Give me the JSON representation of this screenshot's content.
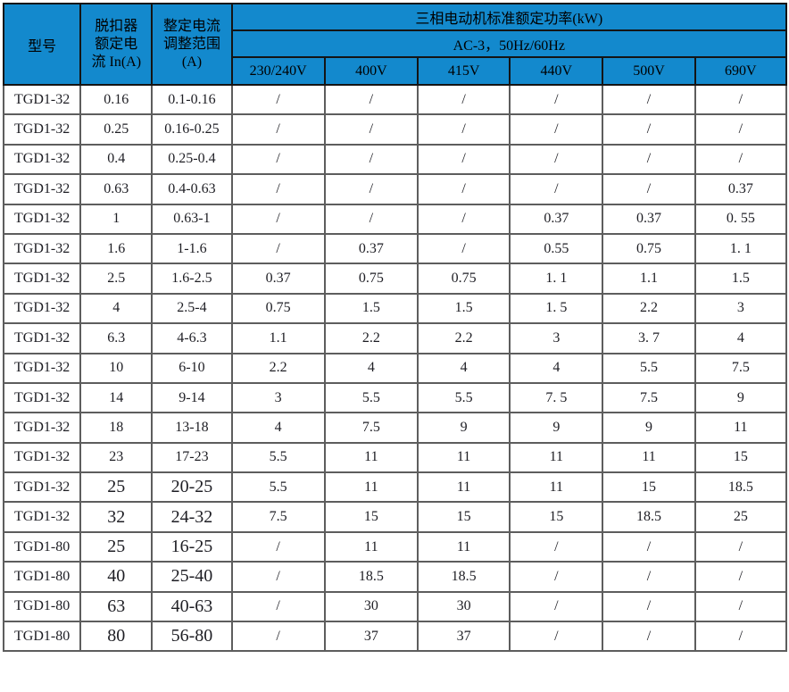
{
  "colors": {
    "header_bg": "#1389cd",
    "header_text": "#000000",
    "header_grid": "#141414",
    "grid": "#5d5d5d",
    "outer": "#333333",
    "body_text": "#1e1e24"
  },
  "table": {
    "headers": {
      "model": "型号",
      "trip_current": "脱扣器\n额定电\n流 In(A)",
      "adjust_range": "整定电流\n调整范围\n(A)",
      "power_title": "三相电动机标准额定功率(kW)",
      "ac_condition": "AC-3，50Hz/60Hz",
      "voltages": [
        "230/240V",
        "400V",
        "415V",
        "440V",
        "500V",
        "690V"
      ]
    },
    "rows": [
      {
        "model": "TGD1-32",
        "in": "0.16",
        "range": "0.1-0.16",
        "values": [
          "/",
          "/",
          "/",
          "/",
          "/",
          "/"
        ],
        "large": false
      },
      {
        "model": "TGD1-32",
        "in": "0.25",
        "range": "0.16-0.25",
        "values": [
          "/",
          "/",
          "/",
          "/",
          "/",
          "/"
        ],
        "large": false
      },
      {
        "model": "TGD1-32",
        "in": "0.4",
        "range": "0.25-0.4",
        "values": [
          "/",
          "/",
          "/",
          "/",
          "/",
          "/"
        ],
        "large": false
      },
      {
        "model": "TGD1-32",
        "in": "0.63",
        "range": "0.4-0.63",
        "values": [
          "/",
          "/",
          "/",
          "/",
          "/",
          "0.37"
        ],
        "large": false
      },
      {
        "model": "TGD1-32",
        "in": "1",
        "range": "0.63-1",
        "values": [
          "/",
          "/",
          "/",
          "0.37",
          "0.37",
          "0. 55"
        ],
        "large": false
      },
      {
        "model": "TGD1-32",
        "in": "1.6",
        "range": "1-1.6",
        "values": [
          "/",
          "0.37",
          "/",
          "0.55",
          "0.75",
          "1. 1"
        ],
        "large": false
      },
      {
        "model": "TGD1-32",
        "in": "2.5",
        "range": "1.6-2.5",
        "values": [
          "0.37",
          "0.75",
          "0.75",
          "1. 1",
          "1.1",
          "1.5"
        ],
        "large": false
      },
      {
        "model": "TGD1-32",
        "in": "4",
        "range": "2.5-4",
        "values": [
          "0.75",
          "1.5",
          "1.5",
          "1. 5",
          "2.2",
          "3"
        ],
        "large": false
      },
      {
        "model": "TGD1-32",
        "in": "6.3",
        "range": "4-6.3",
        "values": [
          "1.1",
          "2.2",
          "2.2",
          "3",
          "3. 7",
          "4"
        ],
        "large": false
      },
      {
        "model": "TGD1-32",
        "in": "10",
        "range": "6-10",
        "values": [
          "2.2",
          "4",
          "4",
          "4",
          "5.5",
          "7.5"
        ],
        "large": false
      },
      {
        "model": "TGD1-32",
        "in": "14",
        "range": "9-14",
        "values": [
          "3",
          "5.5",
          "5.5",
          "7. 5",
          "7.5",
          "9"
        ],
        "large": false
      },
      {
        "model": "TGD1-32",
        "in": "18",
        "range": "13-18",
        "values": [
          "4",
          "7.5",
          "9",
          "9",
          "9",
          "11"
        ],
        "large": false
      },
      {
        "model": "TGD1-32",
        "in": "23",
        "range": "17-23",
        "values": [
          "5.5",
          "11",
          "11",
          "11",
          "11",
          "15"
        ],
        "large": false
      },
      {
        "model": "TGD1-32",
        "in": "25",
        "range": "20-25",
        "values": [
          "5.5",
          "11",
          "11",
          "11",
          "15",
          "18.5"
        ],
        "large": true
      },
      {
        "model": "TGD1-32",
        "in": "32",
        "range": "24-32",
        "values": [
          "7.5",
          "15",
          "15",
          "15",
          "18.5",
          "25"
        ],
        "large": true
      },
      {
        "model": "TGD1-80",
        "in": "25",
        "range": "16-25",
        "values": [
          "/",
          "11",
          "11",
          "/",
          "/",
          "/"
        ],
        "large": true
      },
      {
        "model": "TGD1-80",
        "in": "40",
        "range": "25-40",
        "values": [
          "/",
          "18.5",
          "18.5",
          "/",
          "/",
          "/"
        ],
        "large": true
      },
      {
        "model": "TGD1-80",
        "in": "63",
        "range": "40-63",
        "values": [
          "/",
          "30",
          "30",
          "/",
          "/",
          "/"
        ],
        "large": true
      },
      {
        "model": "TGD1-80",
        "in": "80",
        "range": "56-80",
        "values": [
          "/",
          "37",
          "37",
          "/",
          "/",
          "/"
        ],
        "large": true
      }
    ]
  }
}
